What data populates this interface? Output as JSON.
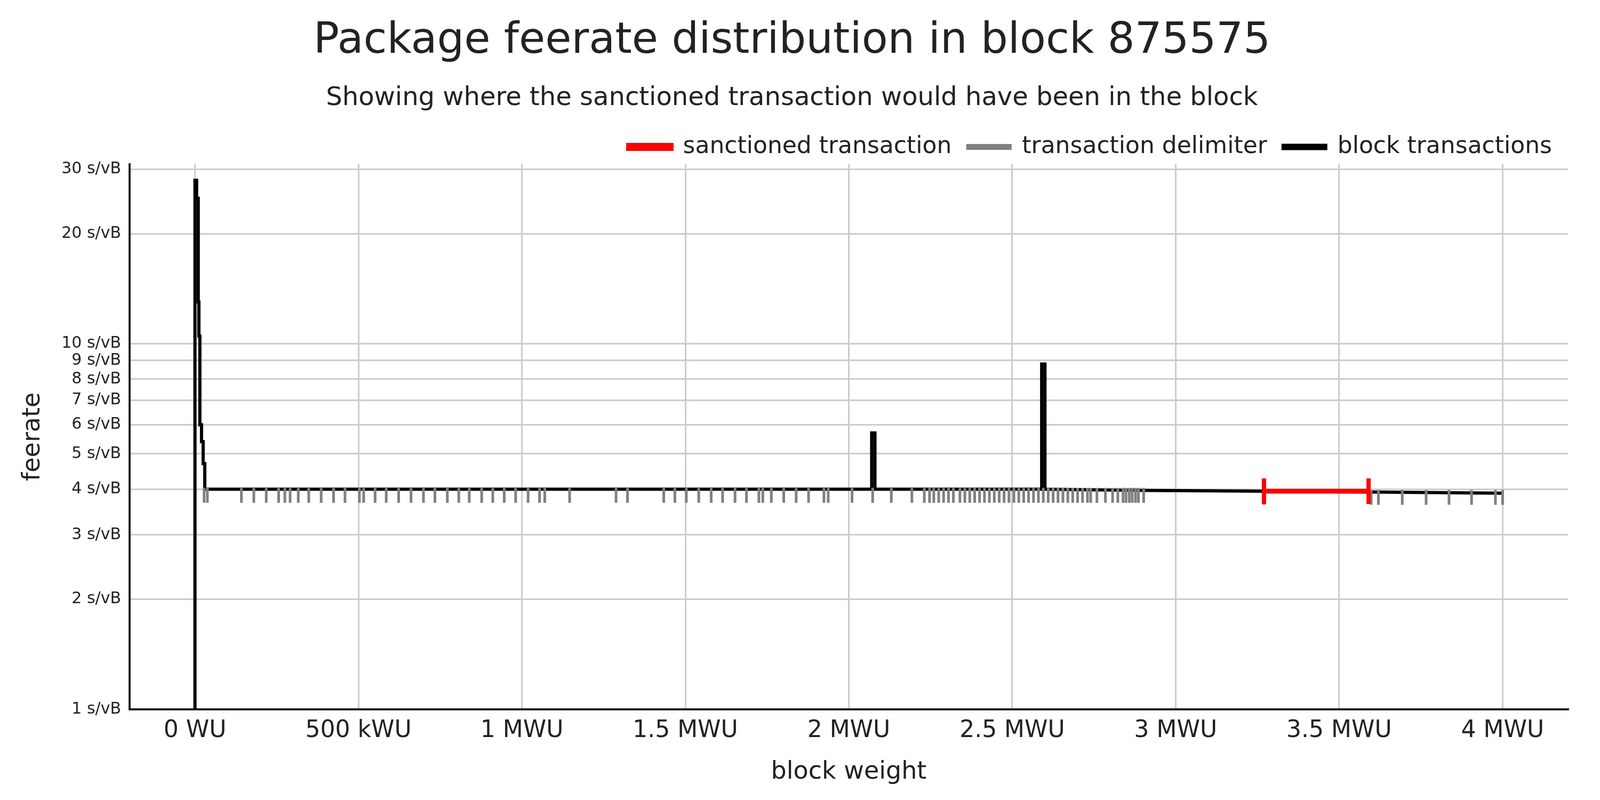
{
  "chart_data": {
    "type": "line",
    "title": "Package feerate distribution in block 875575",
    "subtitle": "Showing where the sanctioned transaction would have been in the block",
    "x_label": "block weight",
    "y_label": "feerate",
    "log": "y",
    "grid": true,
    "legend": "upper right",
    "xlim": [
      -200000,
      4200000
    ],
    "xticks": [
      {
        "value": 0,
        "label": "0 WU"
      },
      {
        "value": 500000,
        "label": "500 kWU"
      },
      {
        "value": 1000000,
        "label": "1 MWU"
      },
      {
        "value": 1500000,
        "label": "1.5 MWU"
      },
      {
        "value": 2000000,
        "label": "2 MWU"
      },
      {
        "value": 2500000,
        "label": "2.5 MWU"
      },
      {
        "value": 3000000,
        "label": "3 MWU"
      },
      {
        "value": 3500000,
        "label": "3.5 MWU"
      },
      {
        "value": 4000000,
        "label": "4 MWU"
      }
    ],
    "ylim": [
      1,
      31
    ],
    "yticks": [
      {
        "value": 1,
        "label": "1 s/vB"
      },
      {
        "value": 2,
        "label": "2 s/vB"
      },
      {
        "value": 3,
        "label": "3 s/vB"
      },
      {
        "value": 4,
        "label": "4 s/vB"
      },
      {
        "value": 5,
        "label": "5 s/vB"
      },
      {
        "value": 6,
        "label": "6 s/vB"
      },
      {
        "value": 7,
        "label": "7 s/vB"
      },
      {
        "value": 8,
        "label": "8 s/vB"
      },
      {
        "value": 9,
        "label": "9 s/vB"
      },
      {
        "value": 10,
        "label": "10 s/vB"
      },
      {
        "value": 20,
        "label": "20 s/vB"
      },
      {
        "value": 30,
        "label": "30 s/vB"
      }
    ],
    "series": [
      {
        "name": "block transactions",
        "color": "#000000",
        "type": "line",
        "marker": "none",
        "line_style": "solid",
        "x": [
          0,
          0,
          5000,
          5000,
          10000,
          10000,
          12000,
          12000,
          15000,
          15000,
          20000,
          20000,
          25000,
          25000,
          30000,
          30000,
          2070000,
          2070000,
          2080000,
          2080000,
          2590000,
          2590000,
          2600000,
          2600000,
          2900000,
          3270000,
          3590000,
          4000000
        ],
        "values": [
          1,
          28,
          28,
          25,
          25,
          13,
          13,
          10.5,
          10.5,
          6,
          6,
          5.4,
          5.4,
          4.7,
          4.7,
          4,
          4,
          5.7,
          5.7,
          4,
          4,
          8.8,
          8.8,
          4,
          3.97,
          3.95,
          3.93,
          3.9
        ]
      },
      {
        "name": "transaction delimiter",
        "color": "#808080",
        "type": "scatter",
        "marker": "vline",
        "x": [
          28000,
          38000,
          142000,
          180000,
          218000,
          256000,
          275000,
          291000,
          316000,
          348000,
          386000,
          424000,
          459000,
          503000,
          516000,
          551000,
          585000,
          623000,
          661000,
          699000,
          734000,
          772000,
          807000,
          839000,
          877000,
          911000,
          946000,
          981000,
          1019000,
          1054000,
          1070000,
          1146000,
          1288000,
          1323000,
          1434000,
          1468000,
          1503000,
          1541000,
          1579000,
          1614000,
          1652000,
          1687000,
          1725000,
          1737000,
          1763000,
          1801000,
          1839000,
          1877000,
          1924000,
          1937000,
          2010000,
          2073000,
          2130000,
          2193000,
          2231000,
          2247000,
          2260000,
          2275000,
          2290000,
          2305000,
          2320000,
          2340000,
          2355000,
          2370000,
          2385000,
          2400000,
          2415000,
          2430000,
          2445000,
          2460000,
          2475000,
          2490000,
          2505000,
          2520000,
          2535000,
          2550000,
          2565000,
          2580000,
          2595000,
          2610000,
          2625000,
          2640000,
          2655000,
          2670000,
          2685000,
          2700000,
          2715000,
          2730000,
          2740000,
          2759000,
          2785000,
          2807000,
          2823000,
          2839000,
          2848000,
          2858000,
          2867000,
          2877000,
          2886000,
          2902000,
          3270000,
          3598000,
          3620000,
          3693000,
          3766000,
          3836000,
          3905000,
          3978000,
          4000000
        ],
        "values": [
          3.85,
          3.85,
          3.85,
          3.85,
          3.85,
          3.85,
          3.85,
          3.85,
          3.85,
          3.85,
          3.85,
          3.85,
          3.85,
          3.85,
          3.85,
          3.85,
          3.85,
          3.85,
          3.85,
          3.85,
          3.85,
          3.85,
          3.85,
          3.85,
          3.85,
          3.85,
          3.85,
          3.85,
          3.85,
          3.85,
          3.85,
          3.85,
          3.85,
          3.85,
          3.85,
          3.85,
          3.85,
          3.85,
          3.85,
          3.85,
          3.85,
          3.85,
          3.85,
          3.85,
          3.85,
          3.85,
          3.85,
          3.85,
          3.85,
          3.85,
          3.85,
          3.85,
          3.85,
          3.85,
          3.85,
          3.85,
          3.85,
          3.85,
          3.85,
          3.85,
          3.85,
          3.85,
          3.85,
          3.85,
          3.85,
          3.85,
          3.85,
          3.85,
          3.85,
          3.85,
          3.85,
          3.85,
          3.85,
          3.85,
          3.85,
          3.85,
          3.85,
          3.85,
          3.85,
          3.85,
          3.85,
          3.85,
          3.85,
          3.85,
          3.85,
          3.85,
          3.85,
          3.85,
          3.85,
          3.85,
          3.85,
          3.85,
          3.85,
          3.85,
          3.85,
          3.85,
          3.85,
          3.85,
          3.85,
          3.85,
          3.8,
          3.8,
          3.8,
          3.8,
          3.8,
          3.8,
          3.8,
          3.8,
          3.8
        ]
      },
      {
        "name": "sanctioned transaction",
        "color": "#ff0000",
        "type": "line",
        "marker": "vline",
        "line_style": "solid",
        "x": [
          3270000,
          3590000
        ],
        "values": [
          3.95,
          3.95
        ]
      }
    ]
  }
}
